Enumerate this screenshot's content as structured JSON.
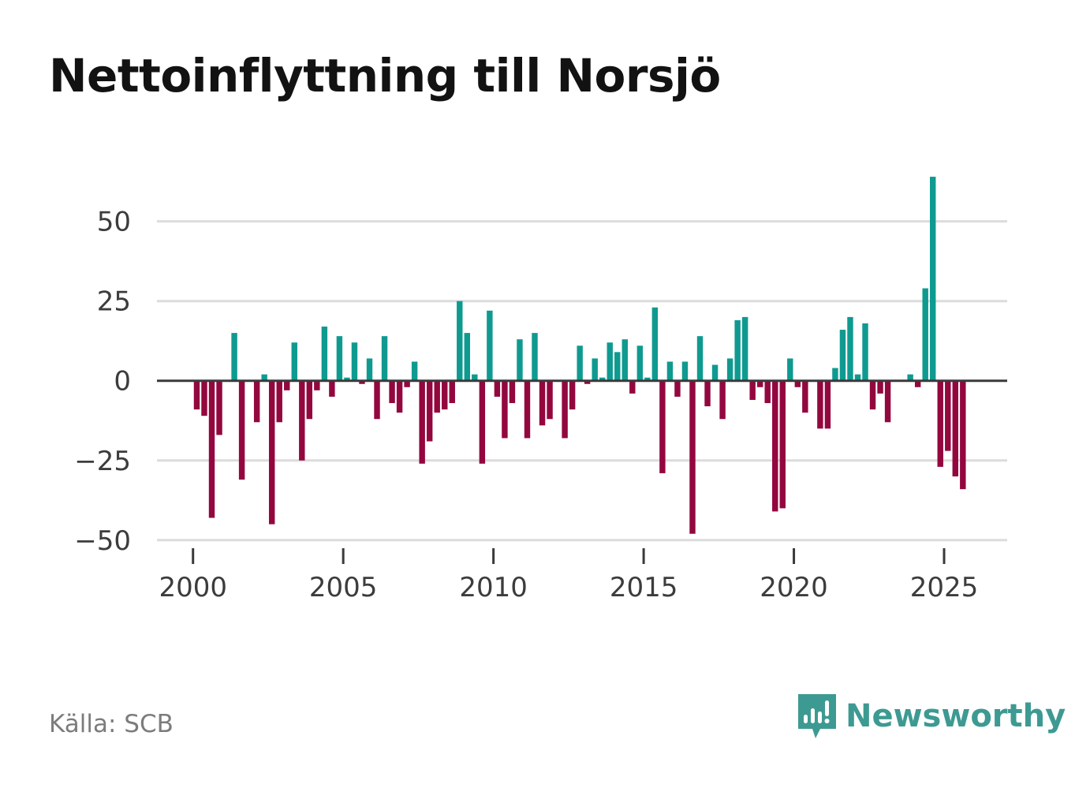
{
  "title": "Nettoinflyttning till Norsjö",
  "source": "Källa: SCB",
  "brand": {
    "name": "Newsworthy",
    "icon": "newsworthy-logo-icon"
  },
  "colors": {
    "positive": "#0f9a90",
    "negative": "#93073f",
    "grid": "#dcdcdc",
    "zero": "#3a3a3a",
    "brand": "#3d9a92"
  },
  "chart_data": {
    "type": "bar",
    "title": "Nettoinflyttning till Norsjö",
    "xlabel": "",
    "ylabel": "",
    "frequency": "quarterly",
    "start": 2000.125,
    "step": 0.25,
    "xlim": [
      1998.8,
      2027.1
    ],
    "ylim": [
      -55,
      66
    ],
    "xticks": [
      2000,
      2005,
      2010,
      2015,
      2020,
      2025
    ],
    "xtick_labels": [
      "2000",
      "2005",
      "2010",
      "2015",
      "2020",
      "2025"
    ],
    "yticks": [
      50,
      25,
      0,
      -25,
      -50
    ],
    "ytick_labels": [
      "50",
      "25",
      "0",
      "−25",
      "−50"
    ],
    "grid": true,
    "values": [
      -9,
      -11,
      -43,
      -17,
      0,
      15,
      -31,
      0,
      -13,
      2,
      -45,
      -13,
      -3,
      12,
      -25,
      -12,
      -3,
      17,
      -5,
      14,
      1,
      12,
      -1,
      7,
      -12,
      14,
      -7,
      -10,
      -2,
      6,
      -26,
      -19,
      -10,
      -9,
      -7,
      25,
      15,
      2,
      -26,
      22,
      -5,
      -18,
      -7,
      13,
      -18,
      15,
      -14,
      -12,
      0,
      -18,
      -9,
      11,
      -1,
      7,
      1,
      12,
      9,
      13,
      -4,
      11,
      1,
      23,
      -29,
      6,
      -5,
      6,
      -48,
      14,
      -8,
      5,
      -12,
      7,
      19,
      20,
      -6,
      -2,
      -7,
      -41,
      -40,
      7,
      -2,
      -10,
      0,
      -15,
      -15,
      4,
      16,
      20,
      2,
      18,
      -9,
      -4,
      -13,
      0,
      0,
      2,
      -2,
      29,
      64,
      -27,
      -22,
      -30,
      -34
    ]
  }
}
